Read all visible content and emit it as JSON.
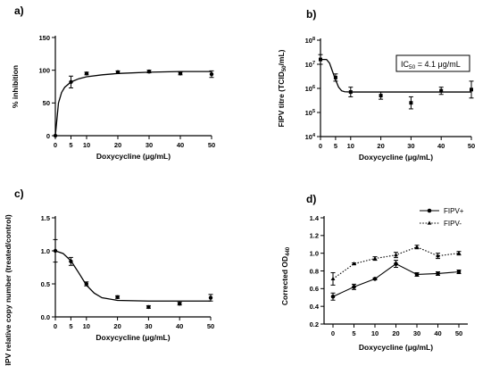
{
  "chart_data": [
    {
      "type": "scatter",
      "panel_label": "a)",
      "xlabel": "Doxycycline (μg/mL)",
      "ylabel": "% inhibition",
      "xlim": [
        0,
        50
      ],
      "ylim": [
        0,
        150
      ],
      "xticks": [
        "0",
        "5",
        "10",
        "20",
        "30",
        "40",
        "50"
      ],
      "yticks": [
        "0",
        "50",
        "100",
        "150"
      ],
      "series": [
        {
          "points": [
            [
              0,
              0,
              0
            ],
            [
              5,
              82,
              9
            ],
            [
              10,
              95,
              2
            ],
            [
              20,
              97,
              2
            ],
            [
              30,
              98,
              2
            ],
            [
              40,
              95,
              2
            ],
            [
              50,
              94,
              5
            ]
          ],
          "fit": [
            [
              0,
              0
            ],
            [
              1,
              50
            ],
            [
              2,
              66
            ],
            [
              3,
              74
            ],
            [
              5,
              82
            ],
            [
              7.5,
              87
            ],
            [
              10,
              90
            ],
            [
              15,
              93
            ],
            [
              20,
              95
            ],
            [
              30,
              97
            ],
            [
              40,
              98
            ],
            [
              50,
              98
            ]
          ]
        }
      ]
    },
    {
      "type": "scatter",
      "panel_label": "b)",
      "xlabel": "Doxycycline (μg/mL)",
      "ylabel_main": "FIPV titre (TCID",
      "ylabel_sub": "50",
      "ylabel_tail": "/mL)",
      "yscale": "log",
      "xlim": [
        0,
        50
      ],
      "ylim_log10": [
        4,
        8
      ],
      "xticks": [
        "0",
        "5",
        "10",
        "20",
        "30",
        "40",
        "50"
      ],
      "ytick_base": "10",
      "ytick_exps": [
        "4",
        "5",
        "6",
        "7",
        "8"
      ],
      "annotation_main": "IC",
      "annotation_sub": "50",
      "annotation_tail": " = 4.1 μg/mL",
      "series": [
        {
          "points_log10": [
            [
              0,
              7.2,
              0.2
            ],
            [
              5,
              6.45,
              0.15
            ],
            [
              10,
              5.85,
              0.2
            ],
            [
              20,
              5.7,
              0.15
            ],
            [
              30,
              5.4,
              0.25
            ],
            [
              40,
              5.9,
              0.15
            ],
            [
              50,
              5.95,
              0.35
            ]
          ],
          "fit_log10": [
            [
              0,
              7.2
            ],
            [
              2,
              7.2
            ],
            [
              3,
              7.05
            ],
            [
              4,
              6.7
            ],
            [
              5,
              6.35
            ],
            [
              6,
              6.05
            ],
            [
              7,
              5.9
            ],
            [
              8,
              5.86
            ],
            [
              10,
              5.85
            ],
            [
              50,
              5.85
            ]
          ]
        }
      ]
    },
    {
      "type": "scatter",
      "panel_label": "c)",
      "xlabel": "Doxycycline (μg/mL)",
      "ylabel": "FIPV relative copy number (treated/control)",
      "xlim": [
        0,
        50
      ],
      "ylim": [
        0,
        1.5
      ],
      "xticks": [
        "0",
        "5",
        "10",
        "20",
        "30",
        "40",
        "50"
      ],
      "yticks": [
        "0.0",
        "0.5",
        "1.0",
        "1.5"
      ],
      "series": [
        {
          "points": [
            [
              0,
              1.0,
              0.17
            ],
            [
              5,
              0.84,
              0.06
            ],
            [
              10,
              0.5,
              0.03
            ],
            [
              20,
              0.3,
              0.02
            ],
            [
              30,
              0.15,
              0.02
            ],
            [
              40,
              0.2,
              0.02
            ],
            [
              50,
              0.29,
              0.05
            ]
          ],
          "fit": [
            [
              0,
              1.0
            ],
            [
              2.5,
              0.96
            ],
            [
              5,
              0.85
            ],
            [
              7.5,
              0.67
            ],
            [
              10,
              0.48
            ],
            [
              12.5,
              0.36
            ],
            [
              15,
              0.29
            ],
            [
              20,
              0.25
            ],
            [
              30,
              0.24
            ],
            [
              50,
              0.24
            ]
          ]
        }
      ]
    },
    {
      "type": "line",
      "panel_label": "d)",
      "xlabel": "Doxycycline (μg/mL)",
      "ylabel_main": "Corrected OD",
      "ylabel_sub": "440",
      "xlim": [
        0,
        50
      ],
      "ylim": [
        0.2,
        1.4
      ],
      "xticks": [
        "0",
        "5",
        "10",
        "20",
        "30",
        "40",
        "50"
      ],
      "yticks": [
        "0.2",
        "0.4",
        "0.6",
        "0.8",
        "1.0",
        "1.2",
        "1.4"
      ],
      "legend_position": "top-right",
      "series": [
        {
          "name": "FIPV+",
          "style": "solid-circle",
          "points": [
            [
              0,
              0.51,
              0.04
            ],
            [
              5,
              0.62,
              0.03
            ],
            [
              10,
              0.71,
              0.01
            ],
            [
              20,
              0.88,
              0.04
            ],
            [
              30,
              0.76,
              0.02
            ],
            [
              40,
              0.77,
              0.02
            ],
            [
              50,
              0.79,
              0.02
            ]
          ]
        },
        {
          "name": "FIPV-",
          "style": "dotted-triangle",
          "points": [
            [
              0,
              0.71,
              0.07
            ],
            [
              5,
              0.88,
              0.01
            ],
            [
              10,
              0.94,
              0.02
            ],
            [
              20,
              0.98,
              0.03
            ],
            [
              30,
              1.07,
              0.02
            ],
            [
              40,
              0.97,
              0.03
            ],
            [
              50,
              1.0,
              0.02
            ]
          ]
        }
      ]
    }
  ]
}
